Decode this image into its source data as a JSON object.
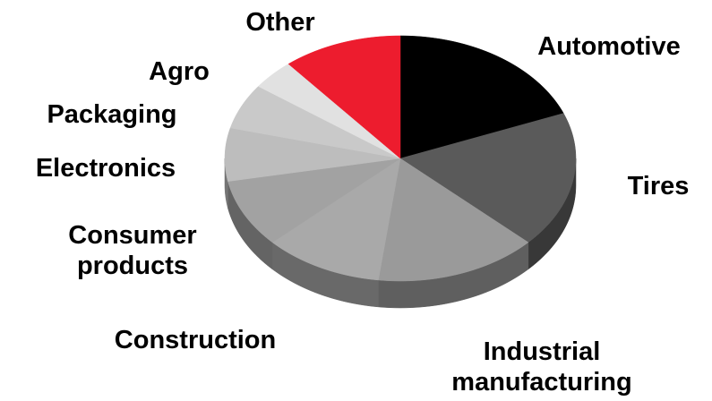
{
  "chart_data": {
    "type": "pie",
    "categories": [
      "Automotive",
      "Tires",
      "Industrial manufacturing",
      "Construction",
      "Consumer products",
      "Electronics",
      "Packaging",
      "Agro",
      "Other"
    ],
    "values": [
      19,
      18,
      15,
      11,
      9,
      7,
      6,
      4,
      11
    ],
    "colors": [
      "#000000",
      "#5a5a5a",
      "#9a9a9a",
      "#a9a9a9",
      "#a2a2a2",
      "#bdbdbd",
      "#c9c9c9",
      "#e1e1e1",
      "#ed1c2e"
    ]
  }
}
